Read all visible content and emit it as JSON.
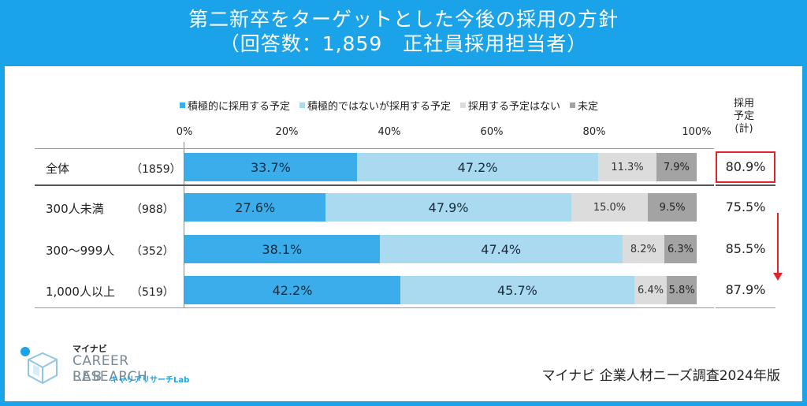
{
  "title_line1": "第二新卒をターゲットとした今後の採用の方針",
  "title_line2": "（回答数：1,859　正社員採用担当者）",
  "plan_header": "採用予定(計)",
  "plan_header_lines": [
    "採用",
    "予定",
    "(計)"
  ],
  "source": "マイナビ 企業人材ニーズ調査2024年版",
  "logo": {
    "brand": "マイナビ",
    "line1": "CAREER RESEARCH",
    "line2": "LAB",
    "sub": "キャリアリサーチLab"
  },
  "colors": {
    "header": "#1aa3e8",
    "s1": "#3badea",
    "s2": "#a9daf0",
    "s3": "#dcdcdc",
    "s4": "#a3a3a3",
    "highlight": "#e2232a"
  },
  "chart_data": {
    "type": "bar",
    "orientation": "horizontal-stacked-100",
    "xlim": [
      0,
      100
    ],
    "xticks": [
      "0%",
      "20%",
      "40%",
      "60%",
      "80%",
      "100%"
    ],
    "categories": [
      "全体",
      "300人未満",
      "300～999人",
      "1,000人以上"
    ],
    "category_n": [
      "（1859）",
      "（988）",
      "（352）",
      "（519）"
    ],
    "series": [
      {
        "name": "積極的に採用する予定",
        "values": [
          33.7,
          27.6,
          38.1,
          42.2
        ],
        "labels": [
          "33.7%",
          "27.6%",
          "38.1%",
          "42.2%"
        ]
      },
      {
        "name": "積極的ではないが採用する予定",
        "values": [
          47.2,
          47.9,
          47.4,
          45.7
        ],
        "labels": [
          "47.2%",
          "47.9%",
          "47.4%",
          "45.7%"
        ]
      },
      {
        "name": "採用する予定はない",
        "values": [
          11.3,
          15.0,
          8.2,
          6.4
        ],
        "labels": [
          "11.3%",
          "15.0%",
          "8.2%",
          "6.4%"
        ]
      },
      {
        "name": "未定",
        "values": [
          7.9,
          9.5,
          6.3,
          5.8
        ],
        "labels": [
          "7.9%",
          "9.5%",
          "6.3%",
          "5.8%"
        ]
      }
    ],
    "plan_total": [
      80.9,
      75.5,
      85.5,
      87.9
    ],
    "plan_total_labels": [
      "80.9%",
      "75.5%",
      "85.5%",
      "87.9%"
    ]
  }
}
